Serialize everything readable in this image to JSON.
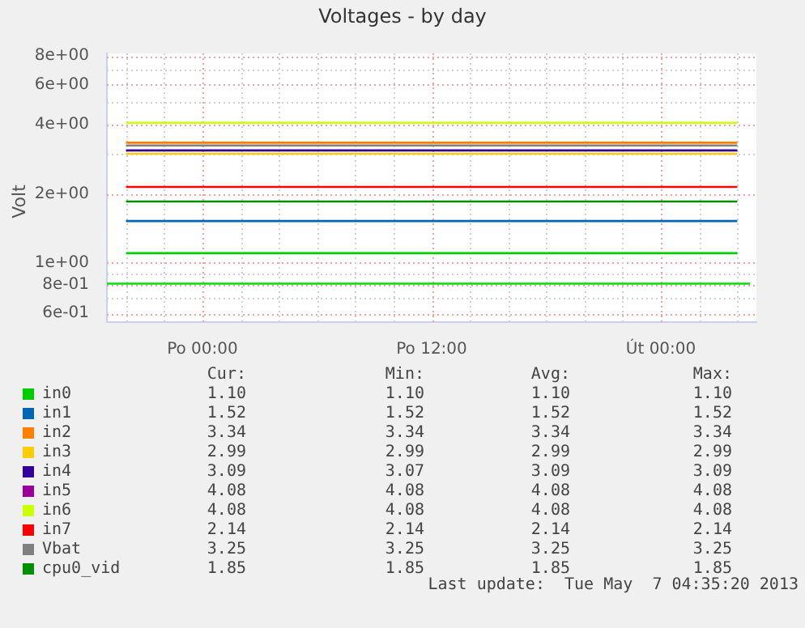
{
  "chart_data": {
    "type": "line",
    "title": "Voltages - by day",
    "ylabel": "Volt",
    "log": "y",
    "grid": true,
    "legend": "bottom",
    "marker": "none",
    "line_style": "solid",
    "categories": [
      null,
      null,
      "Po 00:00",
      null,
      null,
      null,
      null,
      null,
      "Po 12:00",
      null,
      null,
      null,
      null,
      null,
      "Út 00:00",
      null,
      null
    ],
    "ylim": [
      0.55,
      8.2
    ],
    "yticks": [
      {
        "value": 0.6,
        "label": "6e-01"
      },
      {
        "value": 0.8,
        "label": "8e-01"
      },
      {
        "value": 1,
        "label": "1e+00"
      },
      {
        "value": 2,
        "label": "2e+00"
      },
      {
        "value": 4,
        "label": "4e+00"
      },
      {
        "value": 6,
        "label": "6e+00"
      },
      {
        "value": 8,
        "label": "8e+00"
      }
    ],
    "series": [
      {
        "name": "in0",
        "color": "#00cc00",
        "values": [
          1.1,
          1.1,
          1.1,
          1.1,
          1.1,
          1.1,
          1.1,
          1.1,
          1.1,
          1.1,
          1.1,
          1.1,
          1.1,
          1.1,
          1.1,
          1.1,
          1.1
        ]
      },
      {
        "name": "in1",
        "color": "#0066b3",
        "values": [
          1.52,
          1.52,
          1.52,
          1.52,
          1.52,
          1.52,
          1.52,
          1.52,
          1.52,
          1.52,
          1.52,
          1.52,
          1.52,
          1.52,
          1.52,
          1.52,
          1.52
        ]
      },
      {
        "name": "in2",
        "color": "#ff8000",
        "values": [
          3.34,
          3.34,
          3.34,
          3.34,
          3.34,
          3.34,
          3.34,
          3.34,
          3.34,
          3.34,
          3.34,
          3.34,
          3.34,
          3.34,
          3.34,
          3.34,
          3.34
        ]
      },
      {
        "name": "in3",
        "color": "#ffcc00",
        "values": [
          2.99,
          2.99,
          2.99,
          2.99,
          2.99,
          2.99,
          2.99,
          2.99,
          2.99,
          2.99,
          2.99,
          2.99,
          2.99,
          2.99,
          2.99,
          2.99,
          2.99
        ]
      },
      {
        "name": "in4",
        "color": "#330099",
        "values": [
          3.09,
          3.09,
          3.09,
          3.09,
          3.09,
          3.09,
          3.09,
          3.09,
          3.09,
          3.09,
          3.09,
          3.09,
          3.09,
          3.09,
          3.09,
          3.09,
          3.09
        ]
      },
      {
        "name": "in5",
        "color": "#990099",
        "values": [
          null,
          null,
          null,
          null,
          null,
          null,
          null,
          null,
          null,
          null,
          null,
          null,
          null,
          null,
          null,
          null,
          null
        ]
      },
      {
        "name": "in6",
        "color": "#ccff00",
        "values": [
          4.08,
          4.08,
          4.08,
          4.08,
          4.08,
          4.08,
          4.08,
          4.08,
          4.08,
          4.08,
          4.08,
          4.08,
          4.08,
          4.08,
          4.08,
          4.08,
          4.08
        ]
      },
      {
        "name": "in7",
        "color": "#ff0000",
        "values": [
          2.14,
          2.14,
          2.14,
          2.14,
          2.14,
          2.14,
          2.14,
          2.14,
          2.14,
          2.14,
          2.14,
          2.14,
          2.14,
          2.14,
          2.14,
          2.14,
          2.14
        ]
      },
      {
        "name": "Vbat",
        "color": "#808080",
        "values": [
          3.25,
          3.25,
          3.25,
          3.25,
          3.25,
          3.25,
          3.25,
          3.25,
          3.25,
          3.25,
          3.25,
          3.25,
          3.25,
          3.25,
          3.25,
          3.25,
          3.25
        ]
      },
      {
        "name": "cpu0_vid",
        "color": "#008f00",
        "values": [
          1.85,
          1.85,
          1.85,
          1.85,
          1.85,
          1.85,
          1.85,
          1.85,
          1.85,
          1.85,
          1.85,
          1.85,
          1.85,
          1.85,
          1.85,
          1.85,
          1.85
        ]
      }
    ],
    "ref_lines": [
      {
        "axis": "y",
        "value": 0.81,
        "color": "#00e000"
      }
    ],
    "annotations": [
      "Cur:",
      "Min:",
      "Avg:",
      "Max:",
      "1.10",
      "1.10",
      "1.10",
      "1.10",
      "1.52",
      "1.52",
      "1.52",
      "1.52",
      "3.34",
      "3.34",
      "3.34",
      "3.34",
      "2.99",
      "2.99",
      "2.99",
      "2.99",
      "3.09",
      "3.07",
      "3.09",
      "3.09",
      "4.08",
      "4.08",
      "4.08",
      "4.08",
      "4.08",
      "4.08",
      "4.08",
      "4.08",
      "2.14",
      "2.14",
      "2.14",
      "2.14",
      "3.25",
      "3.25",
      "3.25",
      "3.25",
      "1.85",
      "1.85",
      "1.85",
      "1.85",
      "Last update:  Tue May  7 04:35:20 2013"
    ]
  }
}
